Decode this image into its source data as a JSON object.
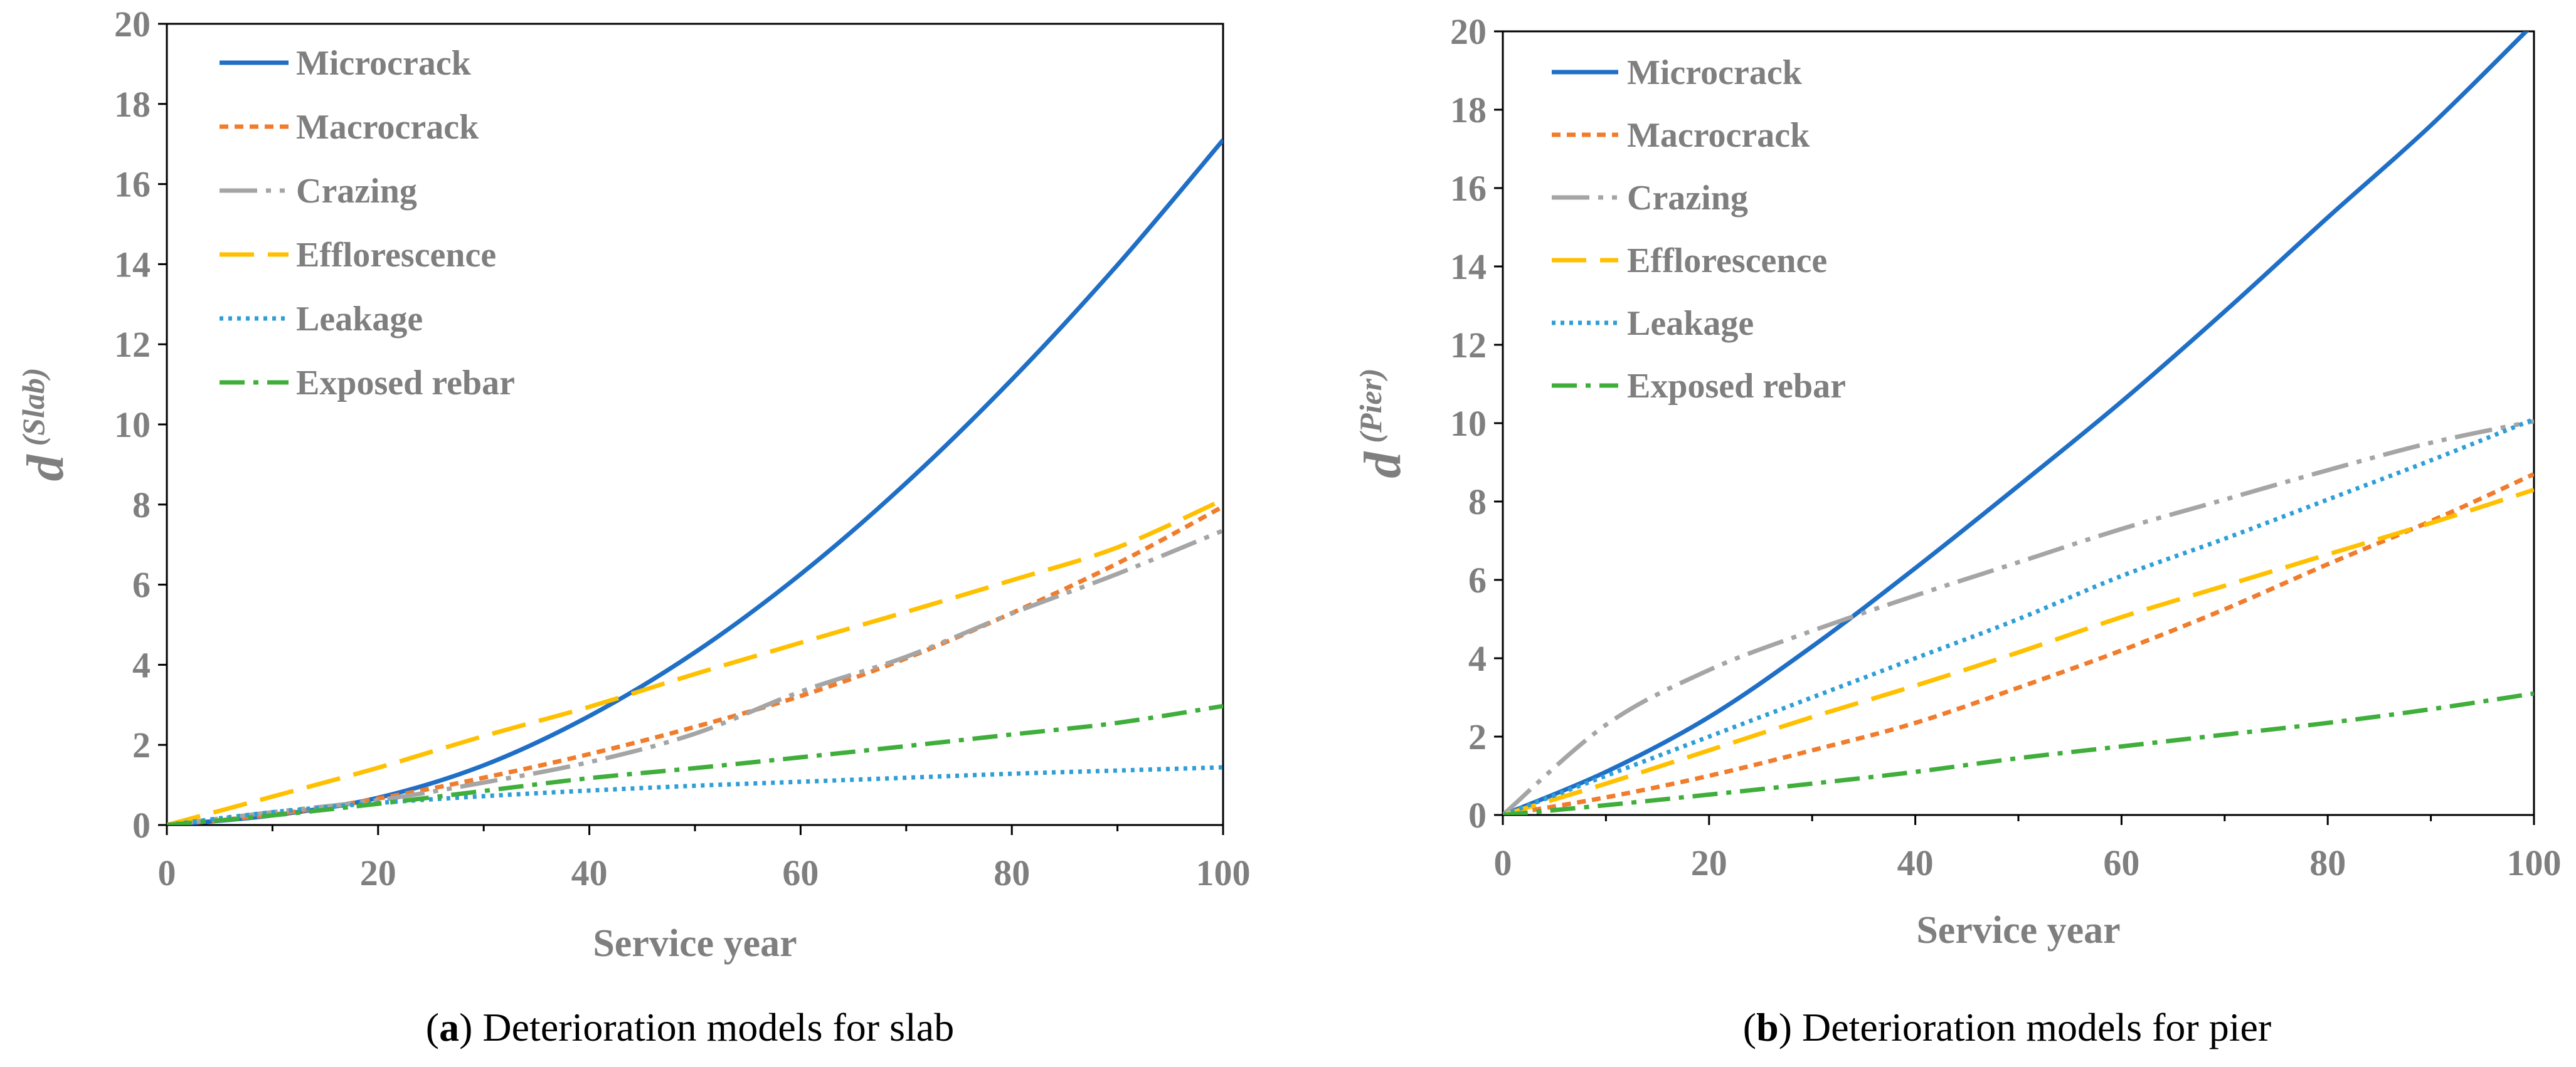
{
  "chart_data": [
    {
      "type": "line",
      "xlabel": "Service year",
      "ylabel": "d",
      "ylabel_sup": "(Slab)",
      "xlim": [
        0,
        100
      ],
      "ylim": [
        0,
        20
      ],
      "xticks": [
        "0",
        "20",
        "40",
        "60",
        "80",
        "100"
      ],
      "yticks": [
        "0",
        "2",
        "4",
        "6",
        "8",
        "10",
        "12",
        "14",
        "16",
        "18",
        "20"
      ],
      "legend_position": "top-left",
      "caption_letter": "a",
      "caption_text": " Deterioration models for slab",
      "x": [
        0,
        10,
        20,
        30,
        40,
        50,
        60,
        70,
        80,
        90,
        100
      ],
      "series": [
        {
          "name": "Microcrack",
          "color": "#1f6fc6",
          "dash": "",
          "width": 7,
          "values": [
            0,
            0.24,
            0.68,
            1.49,
            2.72,
            4.31,
            6.26,
            8.54,
            11.12,
            13.98,
            17.1
          ]
        },
        {
          "name": "Macrocrack",
          "color": "#f07c2c",
          "dash": "14 10",
          "width": 7,
          "values": [
            0,
            0.26,
            0.66,
            1.18,
            1.77,
            2.45,
            3.22,
            4.16,
            5.29,
            6.53,
            7.95
          ]
        },
        {
          "name": "Crazing",
          "color": "#a5a5a5",
          "dash": "60 14 8 14 8 14",
          "width": 7,
          "values": [
            0,
            0.32,
            0.62,
            1.06,
            1.57,
            2.28,
            3.33,
            4.2,
            5.28,
            6.27,
            7.35
          ]
        },
        {
          "name": "Efflorescence",
          "color": "#ffc000",
          "dash": "55 22",
          "width": 7,
          "values": [
            0,
            0.71,
            1.43,
            2.22,
            2.95,
            3.77,
            4.55,
            5.32,
            6.11,
            6.93,
            8.12
          ]
        },
        {
          "name": "Leakage",
          "color": "#2e9fd6",
          "dash": "6 8",
          "width": 7,
          "values": [
            0,
            0.32,
            0.55,
            0.72,
            0.86,
            0.98,
            1.08,
            1.18,
            1.28,
            1.36,
            1.44
          ]
        },
        {
          "name": "Exposed rebar",
          "color": "#3fae3b",
          "dash": "40 14 8 14",
          "width": 7,
          "values": [
            0,
            0.24,
            0.53,
            0.85,
            1.17,
            1.42,
            1.69,
            1.97,
            2.26,
            2.55,
            2.97
          ]
        }
      ]
    },
    {
      "type": "line",
      "xlabel": "Service year",
      "ylabel": "d",
      "ylabel_sup": "(Pier)",
      "xlim": [
        0,
        100
      ],
      "ylim": [
        0,
        20
      ],
      "xticks": [
        "0",
        "20",
        "40",
        "60",
        "80",
        "100"
      ],
      "yticks": [
        "0",
        "2",
        "4",
        "6",
        "8",
        "10",
        "12",
        "14",
        "16",
        "18",
        "20"
      ],
      "legend_position": "top-left",
      "caption_letter": "b",
      "caption_text": " Deterioration models for pier",
      "x": [
        0,
        10,
        20,
        30,
        40,
        50,
        60,
        70,
        80,
        90,
        100
      ],
      "series": [
        {
          "name": "Microcrack",
          "color": "#1f6fc6",
          "dash": "",
          "width": 7,
          "values": [
            0,
            1.1,
            2.5,
            4.3,
            6.3,
            8.4,
            10.55,
            12.85,
            15.25,
            17.6,
            20.2
          ]
        },
        {
          "name": "Macrocrack",
          "color": "#f07c2c",
          "dash": "14 10",
          "width": 7,
          "values": [
            0,
            0.45,
            1.0,
            1.65,
            2.35,
            3.25,
            4.2,
            5.25,
            6.4,
            7.5,
            8.7
          ]
        },
        {
          "name": "Crazing",
          "color": "#a5a5a5",
          "dash": "60 14 8 14 8 14",
          "width": 7,
          "values": [
            0,
            2.3,
            3.7,
            4.7,
            5.6,
            6.45,
            7.3,
            8.05,
            8.8,
            9.5,
            10.05
          ]
        },
        {
          "name": "Efflorescence",
          "color": "#ffc000",
          "dash": "55 22",
          "width": 7,
          "values": [
            0,
            0.8,
            1.65,
            2.5,
            3.3,
            4.15,
            5.05,
            5.85,
            6.65,
            7.45,
            8.3
          ]
        },
        {
          "name": "Leakage",
          "color": "#2e9fd6",
          "dash": "6 8",
          "width": 7,
          "values": [
            0,
            1.0,
            2.0,
            3.0,
            4.0,
            5.0,
            6.1,
            7.05,
            8.05,
            9.05,
            10.1
          ]
        },
        {
          "name": "Exposed rebar",
          "color": "#3fae3b",
          "dash": "40 14 8 14",
          "width": 7,
          "values": [
            0,
            0.25,
            0.52,
            0.8,
            1.1,
            1.45,
            1.75,
            2.05,
            2.35,
            2.7,
            3.1
          ]
        }
      ]
    }
  ]
}
